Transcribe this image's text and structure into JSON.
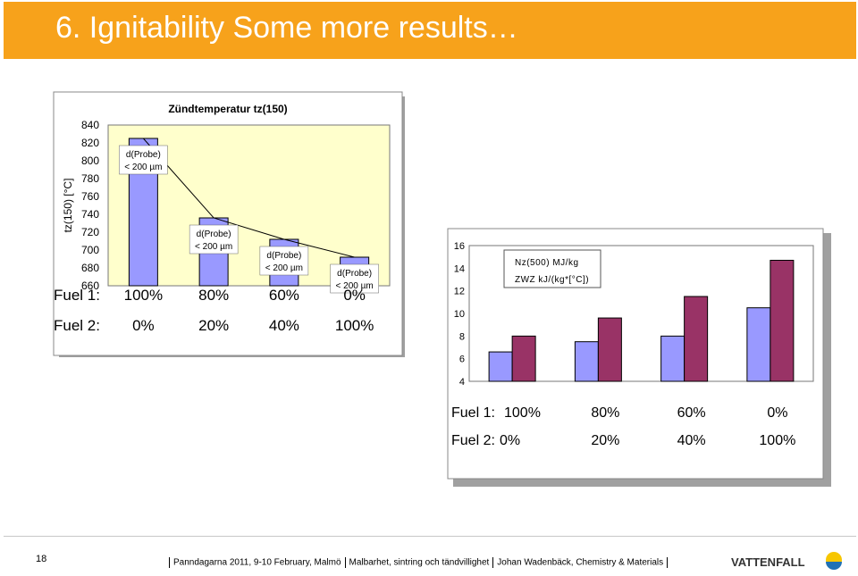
{
  "slide": {
    "title": "6. Ignitability   Some more results…",
    "page_number": "18",
    "footer": [
      "Panndagarna 2011, 9-10 February, Malmö",
      "Malbarhet, sintring och tändvillighet",
      "Johan Wadenbäck, Chemistry & Materials"
    ],
    "logo_text": "VATTENFALL",
    "colors": {
      "title_bar": "#f7a21b",
      "plot_bg": "#ffffcc",
      "series1": "#9999ff",
      "series2": "#993366"
    }
  },
  "chart_data": [
    {
      "type": "bar",
      "title": "Zündtemperatur tz(150)",
      "ylabel": "tz(150) [°C]",
      "ylim": [
        660,
        840
      ],
      "yticks": [
        "840",
        "820",
        "800",
        "780",
        "760",
        "740",
        "720",
        "700",
        "680",
        "660"
      ],
      "values": [
        825,
        736,
        712,
        692
      ],
      "bar_labels": [
        [
          "d(Probe)",
          "< 200 µm"
        ],
        [
          "d(Probe)",
          "< 200 µm"
        ],
        [
          "d(Probe)",
          "< 200 µm"
        ],
        [
          "d(Probe)",
          "< 200 µm"
        ]
      ],
      "fuel1_label": "Fuel 1:",
      "fuel1": [
        "100%",
        "80%",
        "60%",
        "0%"
      ],
      "fuel2_label": "Fuel 2:",
      "fuel2": [
        "0%",
        "20%",
        "40%",
        "100%"
      ],
      "trendline": true,
      "grid": false
    },
    {
      "type": "bar",
      "ylim": [
        4,
        16
      ],
      "yticks": [
        "16",
        "14",
        "12",
        "10",
        "8",
        "6",
        "4"
      ],
      "series": [
        {
          "name": "Nz(500) MJ/kg",
          "values": [
            6.6,
            7.5,
            8.0,
            10.5
          ]
        },
        {
          "name": "ZWZ kJ/(kg*[°C])",
          "values": [
            8.0,
            9.6,
            11.5,
            14.7
          ]
        }
      ],
      "legend": "top-left",
      "fuel1_label": "Fuel 1:",
      "fuel1": [
        "100%",
        "80%",
        "60%",
        "0%"
      ],
      "fuel2_label": "Fuel 2:",
      "fuel2": [
        "0%",
        "20%",
        "40%",
        "100%"
      ],
      "grid": false
    }
  ]
}
